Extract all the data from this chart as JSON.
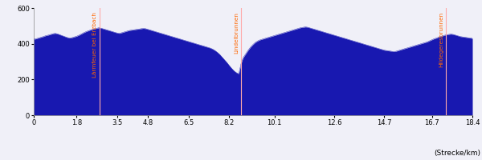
{
  "xlabel": "(Strecke/km)",
  "xlim": [
    0,
    18.4
  ],
  "ylim": [
    0,
    600
  ],
  "xticks": [
    0,
    1.8,
    3.5,
    4.8,
    6.5,
    8.2,
    10.1,
    12.6,
    14.7,
    16.7,
    18.4
  ],
  "yticks": [
    0,
    200,
    400,
    600
  ],
  "fill_color": "#1818b0",
  "bg_color": "#f0f0f8",
  "landmarks": [
    {
      "x": 2.75,
      "label": "Lärmfeuer bei Erzbach",
      "color": "#ff6600"
    },
    {
      "x": 8.7,
      "label": "Lindelbrunnen",
      "color": "#ff6600"
    },
    {
      "x": 17.3,
      "label": "Hildegeresbrunnen",
      "color": "#ff6600"
    }
  ],
  "profile": [
    [
      0.0,
      425
    ],
    [
      0.1,
      428
    ],
    [
      0.2,
      432
    ],
    [
      0.3,
      436
    ],
    [
      0.4,
      440
    ],
    [
      0.5,
      445
    ],
    [
      0.6,
      448
    ],
    [
      0.7,
      452
    ],
    [
      0.8,
      456
    ],
    [
      0.9,
      458
    ],
    [
      1.0,
      455
    ],
    [
      1.1,
      450
    ],
    [
      1.2,
      445
    ],
    [
      1.3,
      440
    ],
    [
      1.4,
      435
    ],
    [
      1.5,
      432
    ],
    [
      1.6,
      434
    ],
    [
      1.7,
      438
    ],
    [
      1.8,
      442
    ],
    [
      1.9,
      448
    ],
    [
      2.0,
      455
    ],
    [
      2.1,
      462
    ],
    [
      2.2,
      468
    ],
    [
      2.3,
      473
    ],
    [
      2.4,
      478
    ],
    [
      2.5,
      482
    ],
    [
      2.6,
      485
    ],
    [
      2.7,
      488
    ],
    [
      2.75,
      490
    ],
    [
      2.8,
      488
    ],
    [
      2.9,
      484
    ],
    [
      3.0,
      480
    ],
    [
      3.1,
      476
    ],
    [
      3.2,
      472
    ],
    [
      3.3,
      468
    ],
    [
      3.4,
      464
    ],
    [
      3.5,
      460
    ],
    [
      3.6,
      458
    ],
    [
      3.7,
      462
    ],
    [
      3.8,
      466
    ],
    [
      3.9,
      470
    ],
    [
      4.0,
      474
    ],
    [
      4.1,
      476
    ],
    [
      4.2,
      478
    ],
    [
      4.3,
      480
    ],
    [
      4.4,
      482
    ],
    [
      4.5,
      484
    ],
    [
      4.6,
      486
    ],
    [
      4.7,
      484
    ],
    [
      4.8,
      480
    ],
    [
      4.9,
      476
    ],
    [
      5.0,
      472
    ],
    [
      5.1,
      468
    ],
    [
      5.2,
      464
    ],
    [
      5.3,
      460
    ],
    [
      5.4,
      456
    ],
    [
      5.5,
      452
    ],
    [
      5.6,
      448
    ],
    [
      5.7,
      444
    ],
    [
      5.8,
      440
    ],
    [
      5.9,
      436
    ],
    [
      6.0,
      432
    ],
    [
      6.1,
      428
    ],
    [
      6.2,
      424
    ],
    [
      6.3,
      420
    ],
    [
      6.4,
      416
    ],
    [
      6.5,
      412
    ],
    [
      6.6,
      408
    ],
    [
      6.7,
      404
    ],
    [
      6.8,
      400
    ],
    [
      6.9,
      396
    ],
    [
      7.0,
      392
    ],
    [
      7.1,
      388
    ],
    [
      7.2,
      384
    ],
    [
      7.3,
      380
    ],
    [
      7.4,
      376
    ],
    [
      7.5,
      370
    ],
    [
      7.6,
      362
    ],
    [
      7.7,
      352
    ],
    [
      7.8,
      340
    ],
    [
      7.9,
      325
    ],
    [
      8.0,
      310
    ],
    [
      8.1,
      295
    ],
    [
      8.2,
      278
    ],
    [
      8.3,
      262
    ],
    [
      8.4,
      248
    ],
    [
      8.5,
      238
    ],
    [
      8.6,
      232
    ],
    [
      8.7,
      290
    ],
    [
      8.75,
      310
    ],
    [
      8.8,
      325
    ],
    [
      8.9,
      345
    ],
    [
      9.0,
      365
    ],
    [
      9.1,
      382
    ],
    [
      9.2,
      396
    ],
    [
      9.3,
      408
    ],
    [
      9.4,
      416
    ],
    [
      9.5,
      422
    ],
    [
      9.6,
      426
    ],
    [
      9.7,
      430
    ],
    [
      9.8,
      434
    ],
    [
      9.9,
      438
    ],
    [
      10.0,
      442
    ],
    [
      10.1,
      446
    ],
    [
      10.2,
      450
    ],
    [
      10.3,
      454
    ],
    [
      10.4,
      458
    ],
    [
      10.5,
      462
    ],
    [
      10.6,
      466
    ],
    [
      10.7,
      470
    ],
    [
      10.8,
      474
    ],
    [
      10.9,
      478
    ],
    [
      11.0,
      482
    ],
    [
      11.1,
      486
    ],
    [
      11.2,
      490
    ],
    [
      11.3,
      492
    ],
    [
      11.4,
      494
    ],
    [
      11.5,
      492
    ],
    [
      11.6,
      488
    ],
    [
      11.7,
      484
    ],
    [
      11.8,
      480
    ],
    [
      11.9,
      476
    ],
    [
      12.0,
      472
    ],
    [
      12.1,
      468
    ],
    [
      12.2,
      464
    ],
    [
      12.3,
      460
    ],
    [
      12.4,
      456
    ],
    [
      12.5,
      452
    ],
    [
      12.6,
      448
    ],
    [
      12.7,
      444
    ],
    [
      12.8,
      440
    ],
    [
      12.9,
      436
    ],
    [
      13.0,
      432
    ],
    [
      13.1,
      428
    ],
    [
      13.2,
      424
    ],
    [
      13.3,
      420
    ],
    [
      13.4,
      416
    ],
    [
      13.5,
      412
    ],
    [
      13.6,
      408
    ],
    [
      13.7,
      404
    ],
    [
      13.8,
      400
    ],
    [
      13.9,
      396
    ],
    [
      14.0,
      392
    ],
    [
      14.1,
      388
    ],
    [
      14.2,
      384
    ],
    [
      14.3,
      380
    ],
    [
      14.4,
      376
    ],
    [
      14.5,
      372
    ],
    [
      14.6,
      368
    ],
    [
      14.7,
      364
    ],
    [
      14.8,
      362
    ],
    [
      14.9,
      360
    ],
    [
      15.0,
      358
    ],
    [
      15.1,
      356
    ],
    [
      15.2,
      358
    ],
    [
      15.3,
      362
    ],
    [
      15.4,
      366
    ],
    [
      15.5,
      370
    ],
    [
      15.6,
      374
    ],
    [
      15.7,
      378
    ],
    [
      15.8,
      382
    ],
    [
      15.9,
      386
    ],
    [
      16.0,
      390
    ],
    [
      16.1,
      394
    ],
    [
      16.2,
      398
    ],
    [
      16.3,
      402
    ],
    [
      16.4,
      406
    ],
    [
      16.5,
      410
    ],
    [
      16.6,
      416
    ],
    [
      16.7,
      422
    ],
    [
      16.8,
      428
    ],
    [
      16.9,
      432
    ],
    [
      17.0,
      438
    ],
    [
      17.1,
      442
    ],
    [
      17.2,
      446
    ],
    [
      17.3,
      450
    ],
    [
      17.4,
      452
    ],
    [
      17.5,
      454
    ],
    [
      17.6,
      452
    ],
    [
      17.7,
      448
    ],
    [
      17.8,
      444
    ],
    [
      17.9,
      440
    ],
    [
      18.0,
      438
    ],
    [
      18.1,
      436
    ],
    [
      18.2,
      434
    ],
    [
      18.3,
      432
    ],
    [
      18.4,
      430
    ]
  ]
}
